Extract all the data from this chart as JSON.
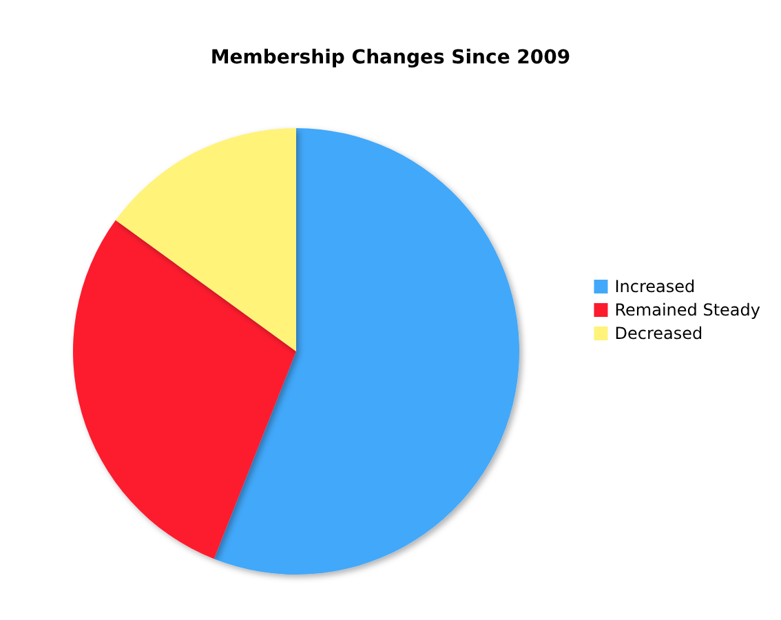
{
  "chart_data": {
    "type": "pie",
    "title": "Membership Changes Since 2009",
    "categories": [
      "Increased",
      "Remained Steady",
      "Decreased"
    ],
    "values": [
      56,
      29,
      15
    ],
    "colors": [
      "#42a8fa",
      "#fc1a2d",
      "#fff37a"
    ],
    "legend": "right"
  }
}
